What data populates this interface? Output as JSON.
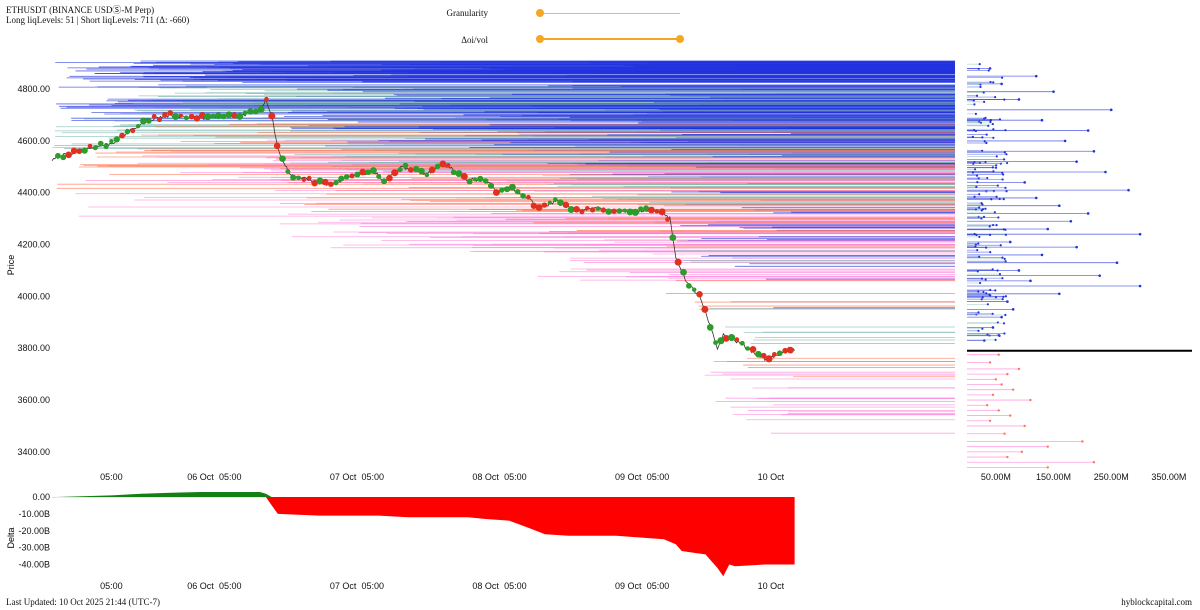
{
  "header": {
    "title": "ETHUSDT (BINANCE USDⓈ-M Perp)",
    "subtitle": "Long liqLevels: 51 | Short liqLevels: 711 (Δ: -660)"
  },
  "controls": {
    "granularity_label": "Granularity",
    "delta_oi_label": "Δoi/vol",
    "granularity_value": 0.0,
    "delta_oi_range": [
      0.0,
      1.0
    ]
  },
  "footer": {
    "last_updated": "Last Updated: 10 Oct 2025 21:44 (UTC-7)",
    "source": "hyblockcapital.com"
  },
  "colors": {
    "short_liq": "#2233dd",
    "short_liq_light": "#7fb8b0",
    "long_liq": "#ff7755",
    "long_liq_light": "#ff88dd",
    "price_up": "#2a9d2a",
    "price_down": "#e03020",
    "delta_pos": "#148014",
    "delta_neg": "#ff0000",
    "current_price_line": "#000000"
  },
  "chart_data": [
    {
      "type": "line",
      "name": "price",
      "ylabel": "Price",
      "ylim": [
        3330,
        4920
      ],
      "y_ticks": [
        3400,
        3600,
        3800,
        4000,
        4200,
        4400,
        4600,
        4800
      ],
      "y_tick_labels": [
        "3400.00",
        "3600.00",
        "3800.00",
        "4000.00",
        "4200.00",
        "4400.00",
        "4600.00",
        "4800.00"
      ],
      "x_tick_labels": [
        "05:00",
        "06 Oct",
        "05:00",
        "07 Oct",
        "05:00",
        "08 Oct",
        "05:00",
        "09 Oct",
        "05:00",
        "10 Oct"
      ],
      "x_hours": [
        -15,
        0,
        5,
        24,
        29,
        48,
        53,
        72,
        77,
        96
      ],
      "xlim_hours": [
        -25,
        127
      ],
      "price_path": [
        [
          -25,
          4530
        ],
        [
          -21,
          4560
        ],
        [
          -17,
          4580
        ],
        [
          -15,
          4590
        ],
        [
          -13,
          4620
        ],
        [
          -9,
          4680
        ],
        [
          -5,
          4700
        ],
        [
          -1,
          4690
        ],
        [
          3,
          4690
        ],
        [
          7,
          4700
        ],
        [
          10,
          4720
        ],
        [
          11,
          4760
        ],
        [
          12,
          4700
        ],
        [
          13,
          4570
        ],
        [
          15,
          4470
        ],
        [
          18,
          4450
        ],
        [
          22,
          4430
        ],
        [
          26,
          4470
        ],
        [
          29,
          4480
        ],
        [
          31,
          4450
        ],
        [
          34,
          4500
        ],
        [
          38,
          4470
        ],
        [
          41,
          4510
        ],
        [
          43,
          4480
        ],
        [
          45,
          4450
        ],
        [
          48,
          4450
        ],
        [
          50,
          4400
        ],
        [
          52,
          4420
        ],
        [
          55,
          4380
        ],
        [
          57,
          4340
        ],
        [
          60,
          4370
        ],
        [
          63,
          4330
        ],
        [
          66,
          4340
        ],
        [
          70,
          4330
        ],
        [
          74,
          4330
        ],
        [
          76,
          4340
        ],
        [
          77,
          4330
        ],
        [
          79,
          4300
        ],
        [
          80,
          4150
        ],
        [
          82,
          4050
        ],
        [
          84,
          4000
        ],
        [
          86,
          3870
        ],
        [
          87,
          3800
        ],
        [
          88,
          3850
        ],
        [
          90,
          3830
        ],
        [
          92,
          3800
        ],
        [
          95,
          3760
        ],
        [
          97,
          3770
        ],
        [
          99,
          3800
        ],
        [
          100,
          3790
        ]
      ],
      "long_liq_levels_count": 51,
      "short_liq_levels_count": 711
    },
    {
      "type": "bar",
      "name": "liquidation-volume-by-price",
      "x_tick_labels": [
        "50.00M",
        "150.00M",
        "250.00M",
        "350.00M"
      ],
      "x_ticks": [
        50,
        150,
        250,
        350
      ],
      "xlim": [
        0,
        390
      ],
      "current_price": 3790,
      "long_liq_samples": [
        [
          3775,
          55
        ],
        [
          3745,
          40
        ],
        [
          3720,
          90
        ],
        [
          3700,
          70
        ],
        [
          3680,
          50
        ],
        [
          3660,
          60
        ],
        [
          3640,
          80
        ],
        [
          3620,
          45
        ],
        [
          3600,
          110
        ],
        [
          3580,
          35
        ],
        [
          3560,
          55
        ],
        [
          3540,
          75
        ],
        [
          3520,
          40
        ],
        [
          3500,
          100
        ],
        [
          3470,
          65
        ],
        [
          3440,
          200
        ],
        [
          3420,
          140
        ],
        [
          3400,
          95
        ],
        [
          3380,
          70
        ],
        [
          3360,
          220
        ],
        [
          3340,
          140
        ]
      ],
      "short_liq_samples": [
        [
          3830,
          30
        ],
        [
          3850,
          55
        ],
        [
          3880,
          45
        ],
        [
          3920,
          60
        ],
        [
          3950,
          80
        ],
        [
          3980,
          70
        ],
        [
          4010,
          160
        ],
        [
          4040,
          300
        ],
        [
          4060,
          110
        ],
        [
          4080,
          230
        ],
        [
          4100,
          90
        ],
        [
          4130,
          260
        ],
        [
          4160,
          130
        ],
        [
          4190,
          190
        ],
        [
          4210,
          75
        ],
        [
          4240,
          300
        ],
        [
          4260,
          140
        ],
        [
          4290,
          180
        ],
        [
          4320,
          210
        ],
        [
          4350,
          160
        ],
        [
          4380,
          120
        ],
        [
          4410,
          280
        ],
        [
          4440,
          100
        ],
        [
          4480,
          240
        ],
        [
          4520,
          190
        ],
        [
          4560,
          220
        ],
        [
          4600,
          170
        ],
        [
          4640,
          210
        ],
        [
          4680,
          130
        ],
        [
          4720,
          250
        ],
        [
          4760,
          90
        ],
        [
          4790,
          150
        ],
        [
          4820,
          60
        ],
        [
          4850,
          120
        ],
        [
          4880,
          40
        ]
      ]
    },
    {
      "type": "area",
      "name": "delta",
      "ylabel": "Delta",
      "ylim": [
        -48,
        3
      ],
      "y_ticks": [
        0,
        -10,
        -20,
        -30,
        -40
      ],
      "y_tick_labels": [
        "0.00",
        "-10.00B",
        "-20.00B",
        "-30.00B",
        "-40.00B"
      ],
      "series": [
        [
          -25,
          0
        ],
        [
          -20,
          0.5
        ],
        [
          -15,
          1
        ],
        [
          -10,
          2
        ],
        [
          -5,
          2.5
        ],
        [
          0,
          3
        ],
        [
          5,
          3
        ],
        [
          10,
          3
        ],
        [
          11,
          2
        ],
        [
          12,
          -5
        ],
        [
          13,
          -10
        ],
        [
          20,
          -11
        ],
        [
          25,
          -11
        ],
        [
          30,
          -11
        ],
        [
          35,
          -12
        ],
        [
          40,
          -12
        ],
        [
          45,
          -12
        ],
        [
          48,
          -13
        ],
        [
          52,
          -14
        ],
        [
          55,
          -18
        ],
        [
          58,
          -22
        ],
        [
          62,
          -23
        ],
        [
          66,
          -23
        ],
        [
          70,
          -23
        ],
        [
          74,
          -24
        ],
        [
          78,
          -25
        ],
        [
          80,
          -28
        ],
        [
          81,
          -32
        ],
        [
          83,
          -33
        ],
        [
          85,
          -34
        ],
        [
          86,
          -38
        ],
        [
          87,
          -42
        ],
        [
          88,
          -47
        ],
        [
          89,
          -40
        ],
        [
          90,
          -41
        ],
        [
          95,
          -40
        ],
        [
          100,
          -40
        ]
      ]
    }
  ]
}
